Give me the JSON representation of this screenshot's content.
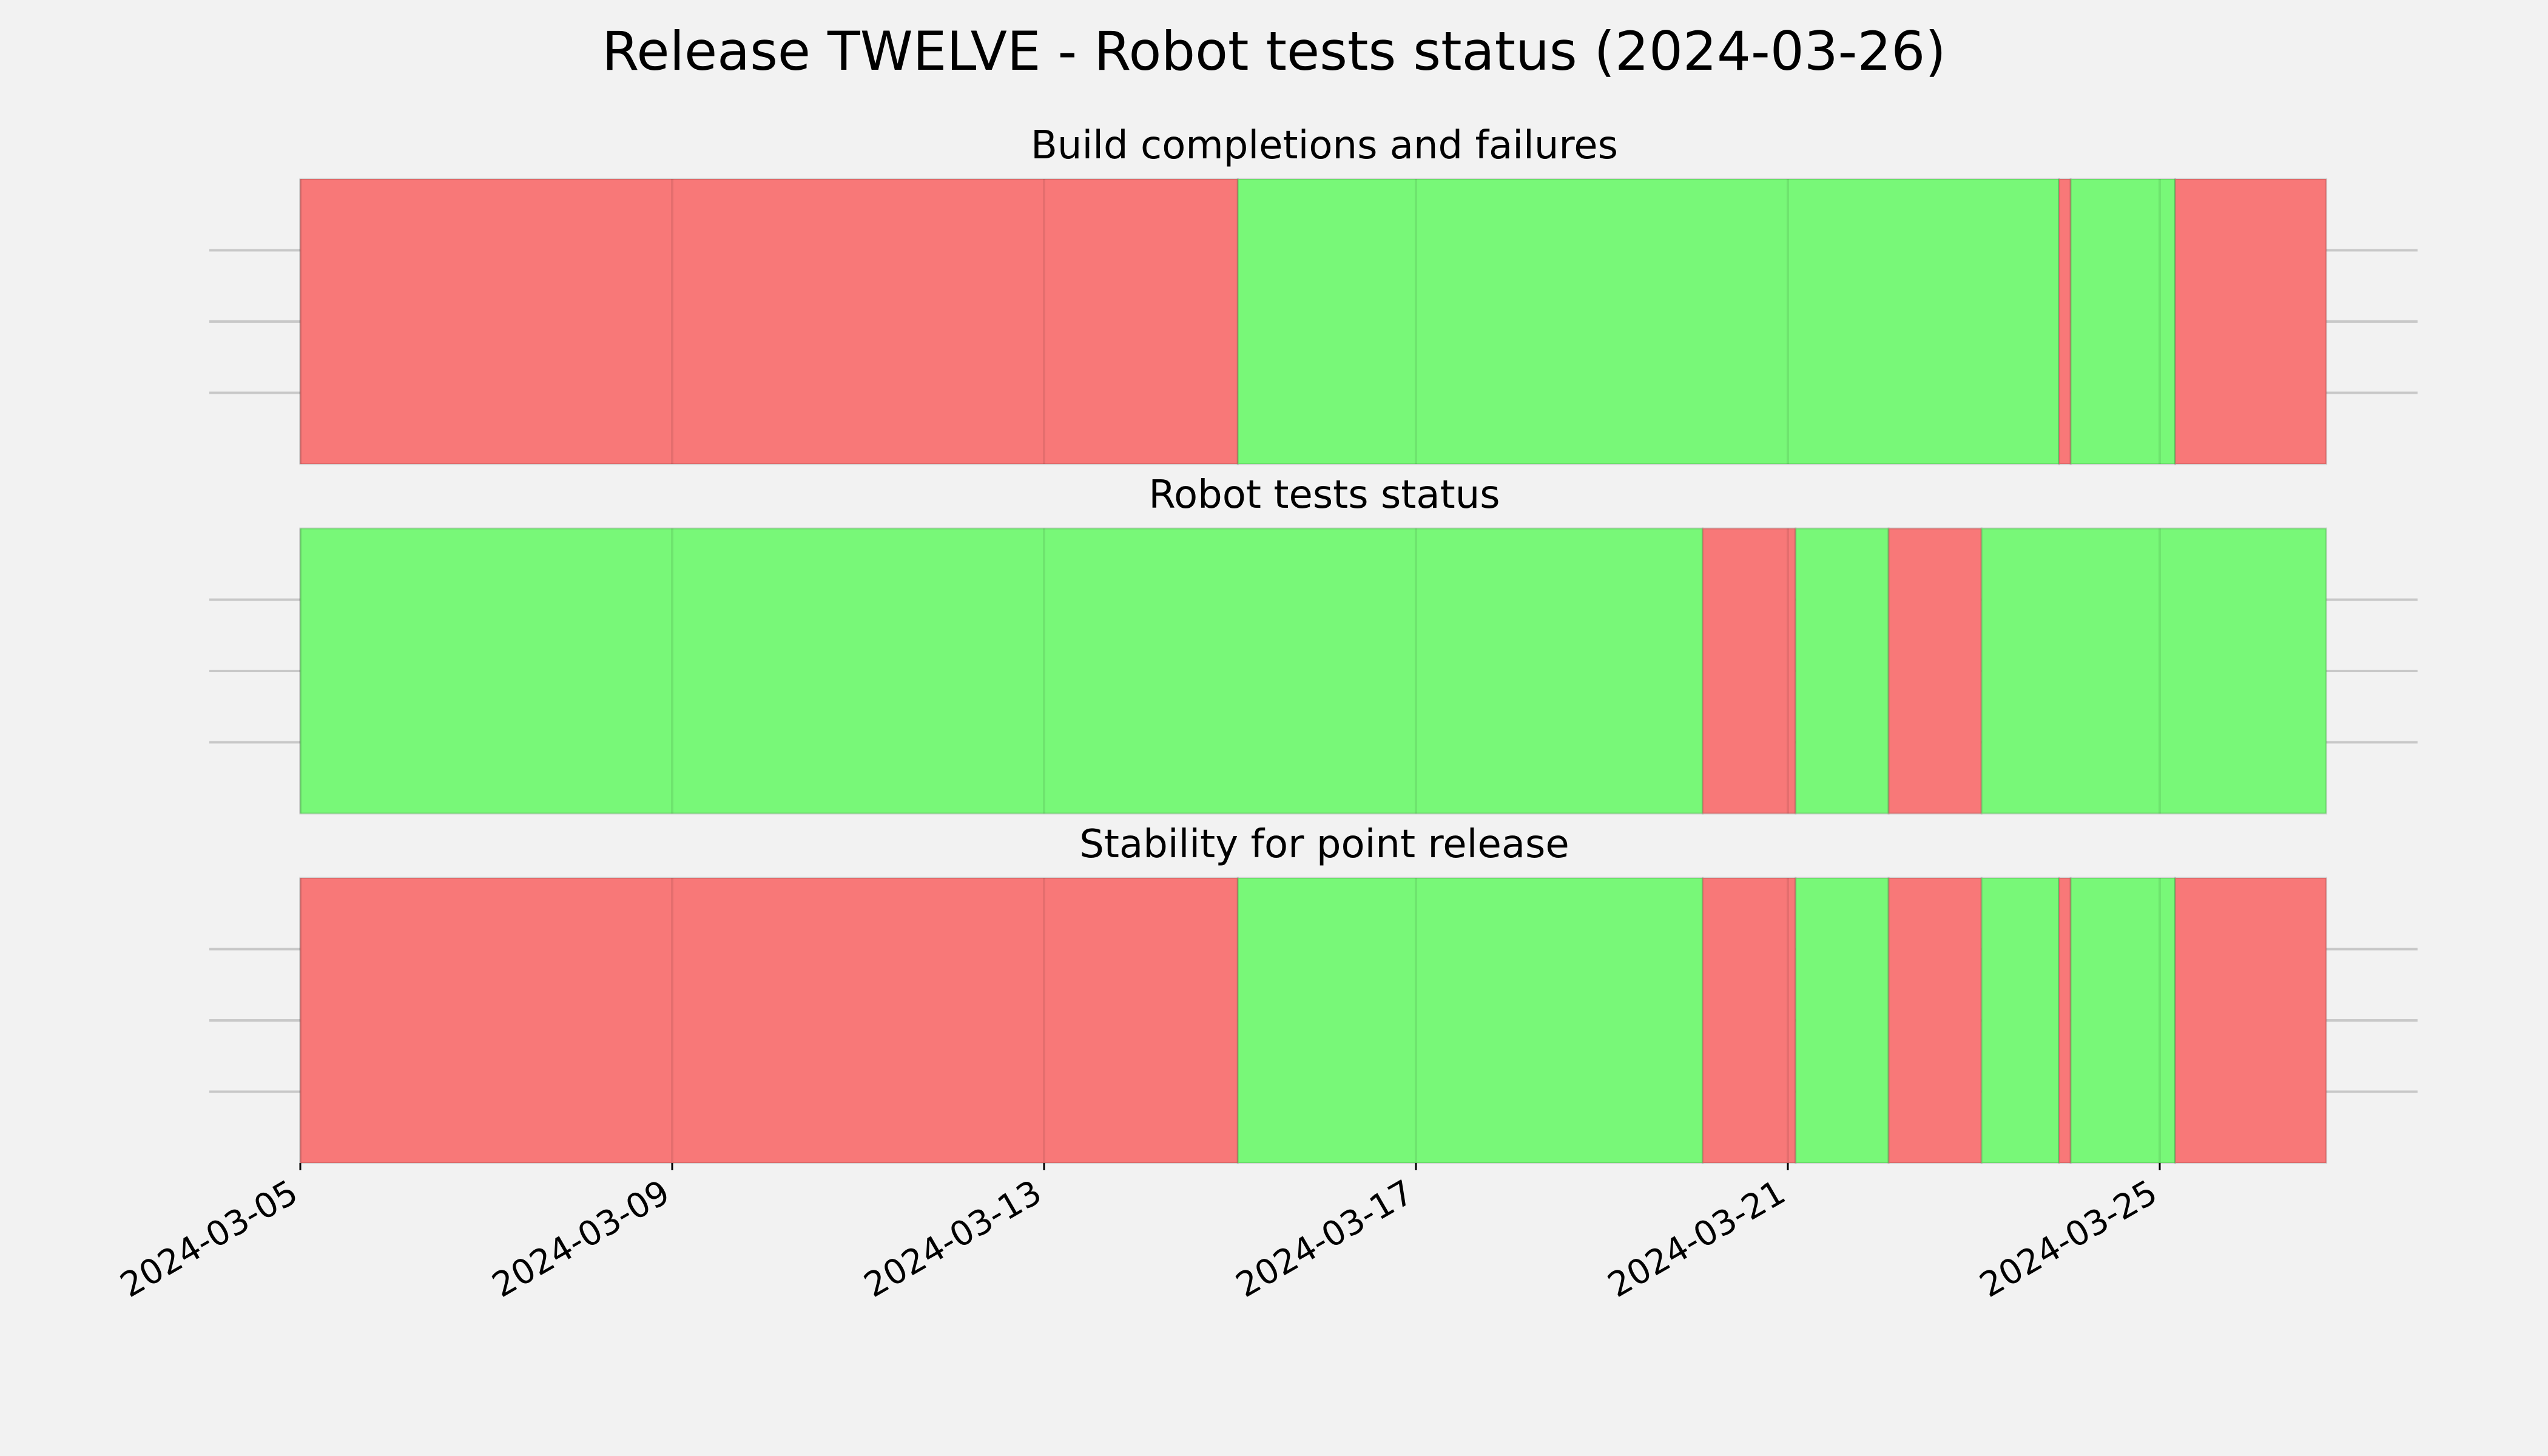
{
  "chart_data": {
    "type": "timeline",
    "title": "Release TWELVE - Robot tests status (2024-03-26)",
    "x_range": [
      "2024-03-05",
      "2024-03-27"
    ],
    "x_ticks": [
      "2024-03-05",
      "2024-03-09",
      "2024-03-13",
      "2024-03-17",
      "2024-03-21",
      "2024-03-25"
    ],
    "grid": true,
    "status_colors": {
      "fail": "#f87878",
      "pass": "#78f878"
    },
    "panels": [
      {
        "title": "Build completions and failures",
        "segments": [
          {
            "start": "2024-03-05T00:00",
            "end": "2024-03-15T02:00",
            "status": "fail"
          },
          {
            "start": "2024-03-15T02:00",
            "end": "2024-03-23T22:00",
            "status": "pass"
          },
          {
            "start": "2024-03-23T22:00",
            "end": "2024-03-24T01:00",
            "status": "fail"
          },
          {
            "start": "2024-03-24T01:00",
            "end": "2024-03-25T04:00",
            "status": "pass"
          },
          {
            "start": "2024-03-25T04:00",
            "end": "2024-03-26T19:00",
            "status": "fail"
          }
        ]
      },
      {
        "title": "Robot tests status",
        "segments": [
          {
            "start": "2024-03-05T00:00",
            "end": "2024-03-20T02:00",
            "status": "pass"
          },
          {
            "start": "2024-03-20T02:00",
            "end": "2024-03-21T02:00",
            "status": "fail"
          },
          {
            "start": "2024-03-21T02:00",
            "end": "2024-03-22T02:00",
            "status": "pass"
          },
          {
            "start": "2024-03-22T02:00",
            "end": "2024-03-23T02:00",
            "status": "fail"
          },
          {
            "start": "2024-03-23T02:00",
            "end": "2024-03-26T19:00",
            "status": "pass"
          }
        ]
      },
      {
        "title": "Stability for point release",
        "segments": [
          {
            "start": "2024-03-05T00:00",
            "end": "2024-03-15T02:00",
            "status": "fail"
          },
          {
            "start": "2024-03-15T02:00",
            "end": "2024-03-20T02:00",
            "status": "pass"
          },
          {
            "start": "2024-03-20T02:00",
            "end": "2024-03-21T02:00",
            "status": "fail"
          },
          {
            "start": "2024-03-21T02:00",
            "end": "2024-03-22T02:00",
            "status": "pass"
          },
          {
            "start": "2024-03-22T02:00",
            "end": "2024-03-23T02:00",
            "status": "fail"
          },
          {
            "start": "2024-03-23T02:00",
            "end": "2024-03-23T22:00",
            "status": "pass"
          },
          {
            "start": "2024-03-23T22:00",
            "end": "2024-03-24T01:00",
            "status": "fail"
          },
          {
            "start": "2024-03-24T01:00",
            "end": "2024-03-25T04:00",
            "status": "pass"
          },
          {
            "start": "2024-03-25T04:00",
            "end": "2024-03-26T19:00",
            "status": "fail"
          }
        ]
      }
    ]
  }
}
